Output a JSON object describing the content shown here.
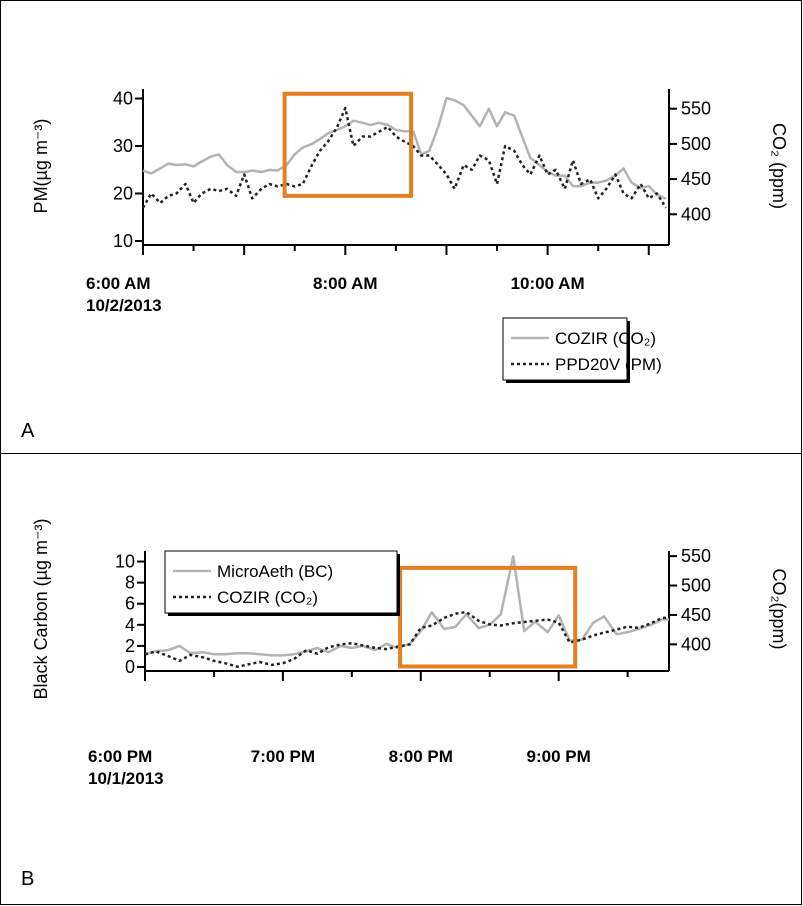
{
  "chart_data": [
    {
      "panel": "A",
      "type": "line",
      "title": "",
      "ylabel": "PM(µg m⁻³)",
      "y2label": "CO₂ (ppm)",
      "ylim": [
        10,
        42
      ],
      "y2lim": [
        362,
        578
      ],
      "yticks": [
        10,
        20,
        30,
        40
      ],
      "y2ticks": [
        400,
        450,
        500,
        550
      ],
      "xlim": [
        6.0,
        11.2
      ],
      "xticks": [
        {
          "x": 6.0,
          "line1": "6:00 AM",
          "line2": "10/2/2013"
        },
        {
          "x": 8.0,
          "line1": "8:00 AM",
          "line2": ""
        },
        {
          "x": 10.0,
          "line1": "10:00 AM",
          "line2": ""
        }
      ],
      "highlight_box": {
        "x": [
          7.4,
          8.65
        ],
        "y": [
          19.5,
          41
        ],
        "color": "#e67e22"
      },
      "legend": {
        "placement": "bottom-right"
      },
      "series": [
        {
          "name": "COZIR (CO₂)",
          "axis": "right",
          "color": "#b3b3b3",
          "style": "solid",
          "x": [
            6.0,
            6.08,
            6.17,
            6.25,
            6.33,
            6.42,
            6.5,
            6.58,
            6.67,
            6.75,
            6.83,
            6.92,
            7.0,
            7.08,
            7.17,
            7.25,
            7.33,
            7.42,
            7.5,
            7.58,
            7.67,
            7.75,
            7.83,
            7.92,
            8.0,
            8.08,
            8.17,
            8.25,
            8.33,
            8.42,
            8.5,
            8.58,
            8.67,
            8.75,
            8.83,
            8.92,
            9.0,
            9.08,
            9.17,
            9.25,
            9.33,
            9.42,
            9.5,
            9.58,
            9.67,
            9.75,
            9.83,
            9.92,
            10.0,
            10.08,
            10.17,
            10.25,
            10.33,
            10.42,
            10.5,
            10.58,
            10.67,
            10.75,
            10.83,
            10.92,
            11.0,
            11.08,
            11.17
          ],
          "values": [
            462,
            458,
            465,
            472,
            470,
            471,
            468,
            475,
            482,
            485,
            470,
            460,
            460,
            462,
            460,
            463,
            462,
            470,
            485,
            495,
            500,
            507,
            515,
            520,
            525,
            533,
            530,
            527,
            530,
            527,
            520,
            518,
            518,
            485,
            490,
            525,
            565,
            562,
            555,
            540,
            525,
            550,
            525,
            545,
            540,
            510,
            480,
            470,
            460,
            455,
            455,
            440,
            440,
            445,
            445,
            448,
            455,
            465,
            445,
            437,
            440,
            428,
            422
          ]
        },
        {
          "name": "PPD20V (PM)",
          "axis": "left",
          "color": "#222222",
          "style": "dotted",
          "x": [
            6.0,
            6.08,
            6.17,
            6.25,
            6.33,
            6.42,
            6.5,
            6.58,
            6.67,
            6.75,
            6.83,
            6.92,
            7.0,
            7.08,
            7.17,
            7.25,
            7.33,
            7.42,
            7.5,
            7.58,
            7.67,
            7.75,
            7.83,
            7.92,
            8.0,
            8.08,
            8.17,
            8.25,
            8.33,
            8.42,
            8.5,
            8.58,
            8.67,
            8.75,
            8.83,
            8.92,
            9.0,
            9.08,
            9.17,
            9.25,
            9.33,
            9.42,
            9.5,
            9.58,
            9.67,
            9.75,
            9.83,
            9.92,
            10.0,
            10.08,
            10.17,
            10.25,
            10.33,
            10.42,
            10.5,
            10.58,
            10.67,
            10.75,
            10.83,
            10.92,
            11.0,
            11.08,
            11.17
          ],
          "values": [
            17,
            20,
            18,
            19.5,
            20,
            22,
            18,
            20,
            21,
            20.5,
            21,
            19.5,
            24,
            19,
            21,
            22,
            21.5,
            22,
            21.5,
            22,
            26,
            29,
            31,
            34,
            38,
            30,
            32,
            32,
            33,
            34,
            32,
            31,
            30,
            28,
            28,
            26,
            24,
            21,
            26,
            25,
            28,
            27,
            22,
            30,
            29,
            26,
            24,
            28,
            24,
            25,
            21,
            27,
            22,
            23,
            19,
            21,
            24,
            20,
            19,
            22,
            19,
            20,
            17
          ]
        }
      ]
    },
    {
      "panel": "B",
      "type": "line",
      "title": "",
      "ylabel": "Black Carbon (µg m⁻³)",
      "y2label": "CO₂(ppm)",
      "ylim": [
        0,
        11
      ],
      "y2lim": [
        361.5,
        558.7
      ],
      "yticks": [
        0,
        2,
        4,
        6,
        8,
        10
      ],
      "y2ticks": [
        400,
        450,
        500,
        550
      ],
      "xlim": [
        18.0,
        21.8
      ],
      "xticks": [
        {
          "x": 18.0,
          "line1": "6:00 PM",
          "line2": "10/1/2013"
        },
        {
          "x": 19.0,
          "line1": "7:00 PM",
          "line2": ""
        },
        {
          "x": 20.0,
          "line1": "8:00 PM",
          "line2": ""
        },
        {
          "x": 21.0,
          "line1": "9:00 PM",
          "line2": ""
        }
      ],
      "highlight_box": {
        "x": [
          19.85,
          21.12
        ],
        "y": [
          0.05,
          9.4
        ],
        "color": "#e67e22"
      },
      "legend": {
        "placement": "top-left"
      },
      "series": [
        {
          "name": "MicroAeth (BC)",
          "axis": "left",
          "color": "#b3b3b3",
          "style": "solid",
          "x": [
            18.0,
            18.08,
            18.17,
            18.25,
            18.33,
            18.42,
            18.5,
            18.58,
            18.67,
            18.75,
            18.83,
            18.92,
            19.0,
            19.08,
            19.17,
            19.25,
            19.33,
            19.42,
            19.5,
            19.58,
            19.67,
            19.75,
            19.83,
            19.92,
            20.0,
            20.08,
            20.17,
            20.25,
            20.33,
            20.42,
            20.5,
            20.58,
            20.67,
            20.75,
            20.83,
            20.92,
            21.0,
            21.08,
            21.17,
            21.25,
            21.33,
            21.42,
            21.5,
            21.58,
            21.67,
            21.75,
            21.8
          ],
          "values": [
            1.2,
            1.5,
            1.6,
            2.0,
            1.3,
            1.4,
            1.2,
            1.2,
            1.3,
            1.3,
            1.2,
            1.1,
            1.1,
            1.2,
            1.5,
            1.8,
            1.4,
            2.0,
            1.8,
            2.0,
            1.6,
            2.2,
            1.8,
            2.2,
            3.4,
            5.2,
            3.6,
            3.8,
            5.0,
            3.7,
            4.0,
            5.0,
            10.5,
            3.4,
            4.3,
            3.3,
            4.9,
            2.5,
            2.6,
            4.2,
            4.8,
            3.1,
            3.3,
            3.6,
            4.0,
            4.5,
            4.5
          ]
        },
        {
          "name": "COZIR (CO₂)",
          "axis": "right",
          "color": "#222222",
          "style": "dotted",
          "x": [
            18.0,
            18.08,
            18.17,
            18.25,
            18.33,
            18.42,
            18.5,
            18.58,
            18.67,
            18.75,
            18.83,
            18.92,
            19.0,
            19.08,
            19.17,
            19.25,
            19.33,
            19.42,
            19.5,
            19.58,
            19.67,
            19.75,
            19.83,
            19.92,
            20.0,
            20.08,
            20.17,
            20.25,
            20.33,
            20.42,
            20.5,
            20.58,
            20.67,
            20.75,
            20.83,
            20.92,
            21.0,
            21.08,
            21.17,
            21.25,
            21.33,
            21.42,
            21.5,
            21.58,
            21.67,
            21.75,
            21.8
          ],
          "values": [
            383,
            388,
            380,
            372,
            382,
            378,
            372,
            368,
            362,
            366,
            370,
            365,
            368,
            375,
            390,
            384,
            395,
            400,
            402,
            398,
            394,
            392,
            396,
            400,
            428,
            432,
            445,
            452,
            455,
            440,
            434,
            432,
            436,
            438,
            440,
            442,
            437,
            403,
            408,
            415,
            420,
            425,
            430,
            428,
            436,
            445,
            445
          ]
        }
      ]
    }
  ],
  "panels": {
    "a_letter": "A",
    "b_letter": "B"
  }
}
